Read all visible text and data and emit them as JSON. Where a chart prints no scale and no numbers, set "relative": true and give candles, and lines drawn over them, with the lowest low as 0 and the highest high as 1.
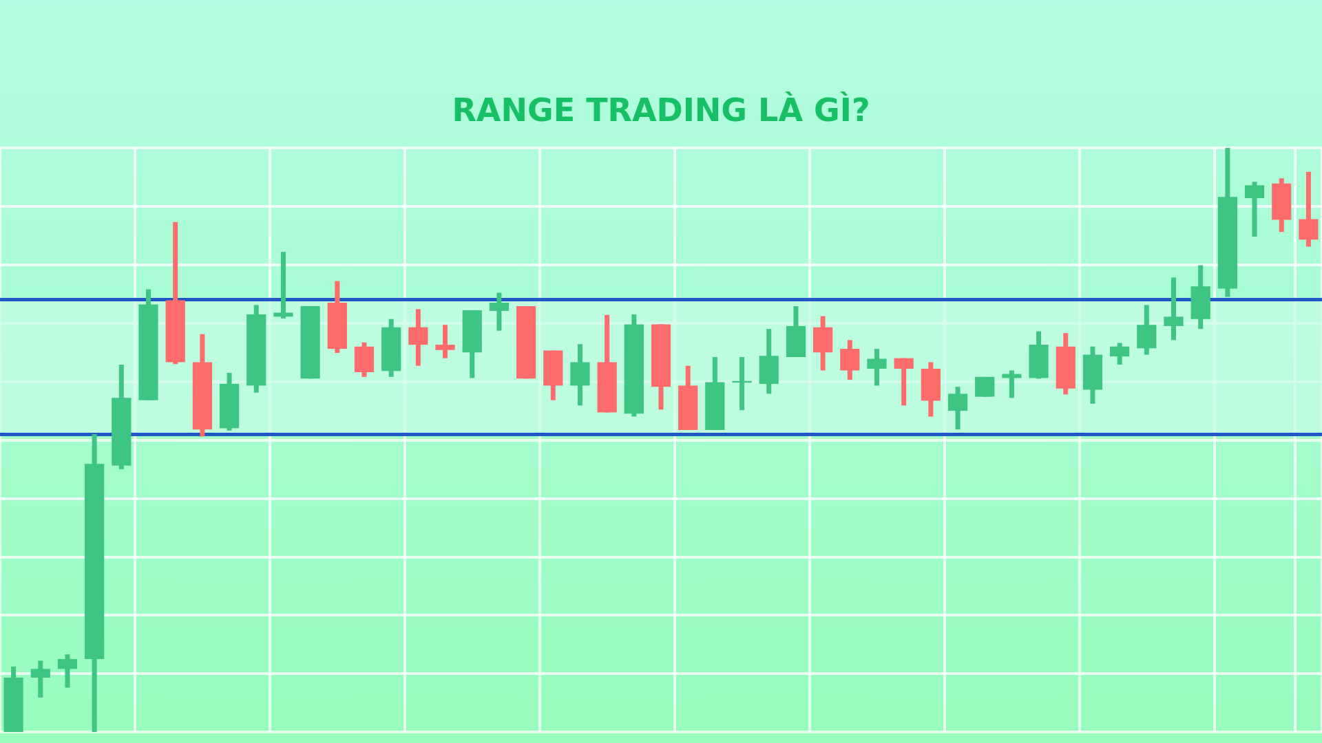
{
  "chart_data": {
    "type": "candlestick",
    "title": "RANGE TRADING LÀ GÌ?",
    "relative": true,
    "grid": true,
    "tick_labels": false,
    "colors": [
      "#3ec483",
      "#3ec483",
      "#3ec483",
      "#3ec483",
      "#3ec483",
      "#3ec483",
      "#fd6b6b",
      "#fd6b6b",
      "#3ec483",
      "#3ec483",
      "#3ec483",
      "#3ec483",
      "#fd6b6b",
      "#fd6b6b",
      "#3ec483",
      "#fd6b6b",
      "#fd6b6b",
      "#3ec483",
      "#3ec483",
      "#fd6b6b",
      "#fd6b6b",
      "#3ec483",
      "#fd6b6b",
      "#3ec483",
      "#fd6b6b",
      "#fd6b6b",
      "#3ec483",
      "#3ec483",
      "#3ec483",
      "#3ec483",
      "#fd6b6b",
      "#fd6b6b",
      "#3ec483",
      "#fd6b6b",
      "#fd6b6b",
      "#3ec483",
      "#3ec483",
      "#3ec483",
      "#3ec483",
      "#fd6b6b",
      "#3ec483",
      "#3ec483",
      "#3ec483",
      "#3ec483",
      "#3ec483",
      "#3ec483",
      "#3ec483",
      "#fd6b6b",
      "#fd6b6b"
    ],
    "categories": [
      null,
      null,
      null,
      null,
      null,
      null,
      null,
      null,
      null,
      null,
      null,
      null,
      null,
      null,
      null,
      null,
      null,
      null,
      null,
      null,
      null,
      null,
      null,
      null,
      null,
      null,
      null,
      null,
      null,
      null,
      null,
      null,
      null,
      null,
      null,
      null,
      null,
      null,
      null,
      null,
      null,
      null,
      null,
      null,
      null,
      null,
      null,
      null,
      null
    ],
    "ohlc": [
      [
        0,
        0.112,
        0,
        0.093
      ],
      [
        0.093,
        0.122,
        0.059,
        0.108
      ],
      [
        0.108,
        0.133,
        0.076,
        0.125
      ],
      [
        0.125,
        0.51,
        0,
        0.459
      ],
      [
        0.456,
        0.629,
        0.45,
        0.572
      ],
      [
        0.568,
        0.758,
        0.568,
        0.732
      ],
      [
        0.739,
        0.873,
        0.63,
        0.633
      ],
      [
        0.633,
        0.681,
        0.506,
        0.518
      ],
      [
        0.52,
        0.615,
        0.516,
        0.596
      ],
      [
        0.593,
        0.731,
        0.581,
        0.715
      ],
      [
        0.711,
        0.822,
        0.708,
        0.718
      ],
      [
        0.605,
        0.729,
        0.605,
        0.729
      ],
      [
        0.735,
        0.772,
        0.649,
        0.656
      ],
      [
        0.66,
        0.667,
        0.608,
        0.616
      ],
      [
        0.618,
        0.707,
        0.608,
        0.693
      ],
      [
        0.693,
        0.724,
        0.627,
        0.663
      ],
      [
        0.663,
        0.697,
        0.64,
        0.654
      ],
      [
        0.65,
        0.722,
        0.606,
        0.722
      ],
      [
        0.721,
        0.752,
        0.687,
        0.735
      ],
      [
        0.729,
        0.729,
        0.605,
        0.605
      ],
      [
        0.653,
        0.653,
        0.568,
        0.593
      ],
      [
        0.593,
        0.664,
        0.559,
        0.633
      ],
      [
        0.633,
        0.714,
        0.547,
        0.547
      ],
      [
        0.545,
        0.715,
        0.54,
        0.698
      ],
      [
        0.698,
        0.698,
        0.552,
        0.591
      ],
      [
        0.593,
        0.627,
        0.517,
        0.517
      ],
      [
        0.517,
        0.642,
        0.517,
        0.599
      ],
      [
        0.598,
        0.642,
        0.551,
        0.601
      ],
      [
        0.596,
        0.69,
        0.579,
        0.644
      ],
      [
        0.642,
        0.729,
        0.642,
        0.695
      ],
      [
        0.693,
        0.712,
        0.619,
        0.65
      ],
      [
        0.656,
        0.671,
        0.603,
        0.619
      ],
      [
        0.622,
        0.656,
        0.593,
        0.639
      ],
      [
        0.64,
        0.64,
        0.559,
        0.622
      ],
      [
        0.622,
        0.633,
        0.54,
        0.567
      ],
      [
        0.55,
        0.591,
        0.518,
        0.579
      ],
      [
        0.574,
        0.608,
        0.574,
        0.608
      ],
      [
        0.606,
        0.619,
        0.572,
        0.613
      ],
      [
        0.606,
        0.686,
        0.605,
        0.663
      ],
      [
        0.66,
        0.683,
        0.578,
        0.588
      ],
      [
        0.586,
        0.66,
        0.562,
        0.646
      ],
      [
        0.643,
        0.666,
        0.629,
        0.66
      ],
      [
        0.657,
        0.731,
        0.646,
        0.697
      ],
      [
        0.695,
        0.778,
        0.671,
        0.711
      ],
      [
        0.707,
        0.799,
        0.69,
        0.763
      ],
      [
        0.759,
        1,
        0.745,
        0.916
      ],
      [
        0.914,
        0.942,
        0.848,
        0.936
      ],
      [
        0.939,
        0.948,
        0.856,
        0.877
      ],
      [
        0.878,
        0.959,
        0.831,
        0.843
      ]
    ],
    "bands": [
      {
        "axis": "y",
        "from": 0.511,
        "to": 0.744,
        "color": "#c8fce6"
      }
    ],
    "ref_lines": [
      {
        "axis": "y",
        "value": 0.744,
        "color": "#1f58c4"
      },
      {
        "axis": "y",
        "value": 0.511,
        "color": "#1f58c4"
      }
    ]
  }
}
